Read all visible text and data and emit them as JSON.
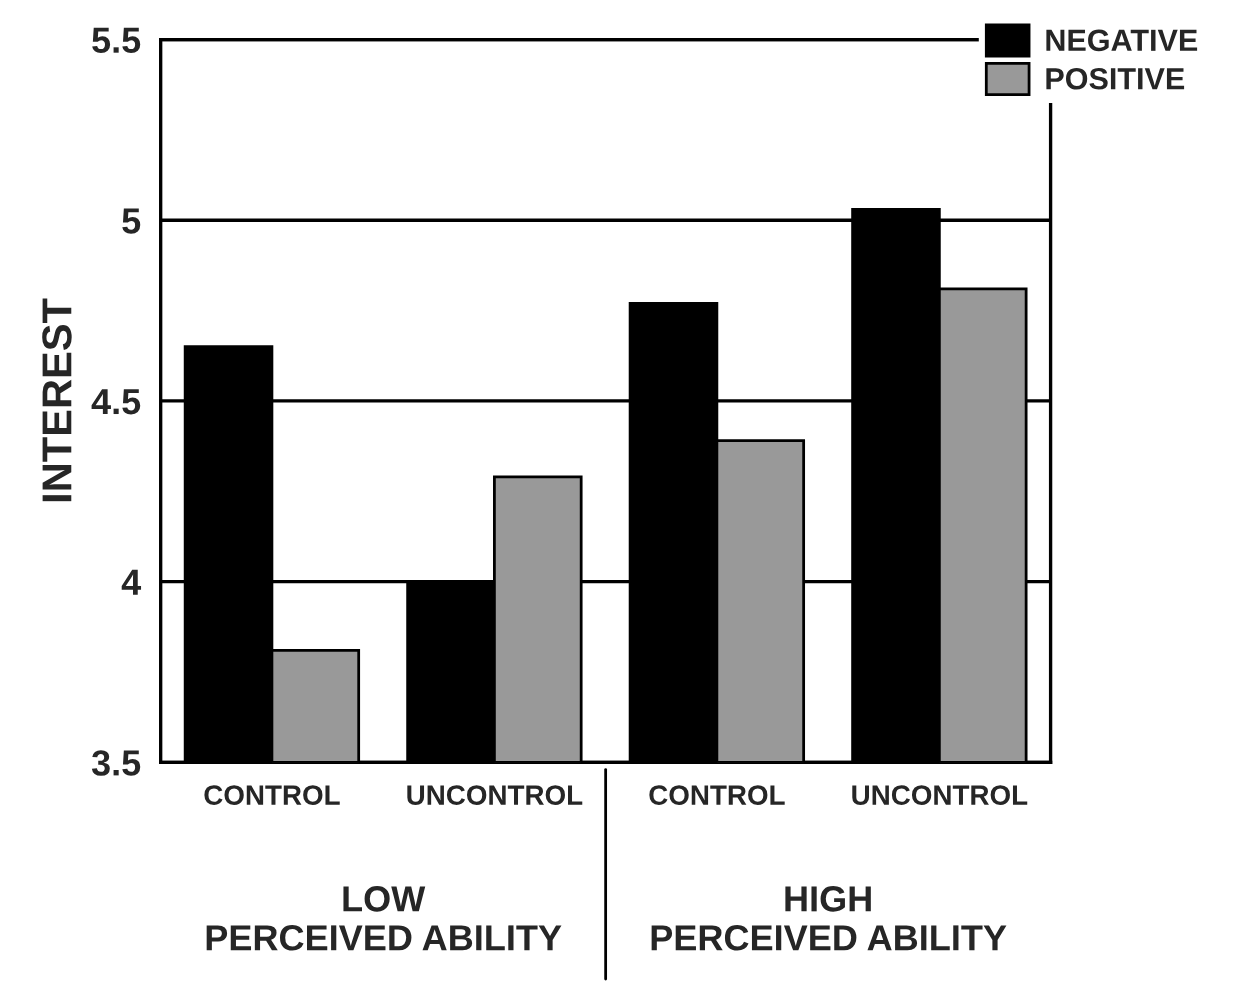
{
  "chart_data": {
    "type": "bar",
    "ylabel": "INTEREST",
    "categories": [
      "CONTROL",
      "UNCONTROL",
      "CONTROL",
      "UNCONTROL"
    ],
    "series": [
      {
        "name": "NEGATIVE",
        "color": "#000000",
        "values": [
          4.65,
          4.0,
          4.77,
          5.03
        ]
      },
      {
        "name": "POSITIVE",
        "color": "#999999",
        "values": [
          3.81,
          4.29,
          4.39,
          4.81
        ]
      }
    ],
    "ylim": [
      3.5,
      5.5
    ],
    "yticks": [
      3.5,
      4,
      4.5,
      5,
      5.5
    ],
    "grid": "y",
    "legend": "top right",
    "annotations": [
      "LOW\nPERCEIVED ABILITY",
      "HIGH\nPERCEIVED ABILITY"
    ]
  }
}
